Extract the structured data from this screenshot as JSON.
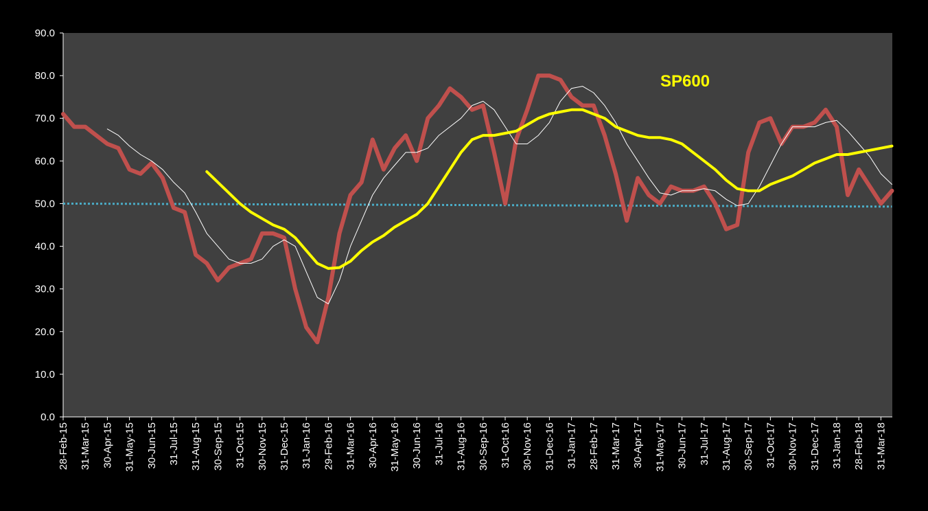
{
  "chart_data": {
    "type": "line",
    "annotations": [
      {
        "text": "SP600",
        "color": "#ffff00"
      }
    ],
    "categories": [
      "28-Feb-15",
      null,
      "31-Mar-15",
      null,
      "30-Apr-15",
      null,
      "31-May-15",
      null,
      "30-Jun-15",
      null,
      "31-Jul-15",
      null,
      "31-Aug-15",
      null,
      "30-Sep-15",
      null,
      "31-Oct-15",
      null,
      "30-Nov-15",
      null,
      "31-Dec-15",
      null,
      "31-Jan-16",
      null,
      "29-Feb-16",
      null,
      "31-Mar-16",
      null,
      "30-Apr-16",
      null,
      "31-May-16",
      null,
      "30-Jun-16",
      null,
      "31-Jul-16",
      null,
      "31-Aug-16",
      null,
      "30-Sep-16",
      null,
      "31-Oct-16",
      null,
      "30-Nov-16",
      null,
      "31-Dec-16",
      null,
      "31-Jan-17",
      null,
      "28-Feb-17",
      null,
      "31-Mar-17",
      null,
      "30-Apr-17",
      null,
      "31-May-17",
      null,
      "30-Jun-17",
      null,
      "31-Jul-17",
      null,
      "31-Aug-17",
      null,
      "30-Sep-17",
      null,
      "31-Oct-17",
      null,
      "30-Nov-17",
      null,
      "31-Dec-17",
      null,
      "31-Jan-18",
      null,
      "28-Feb-18",
      null,
      "31-Mar-18",
      null
    ],
    "series": [
      {
        "color": "#c0504d",
        "width": 6,
        "values": [
          71,
          68,
          68,
          66,
          64,
          63,
          58,
          57,
          59.5,
          56,
          49,
          48,
          38,
          36,
          32,
          35,
          36,
          37,
          43,
          43,
          42,
          30,
          21,
          17.5,
          28,
          43,
          52,
          55,
          65,
          58,
          63,
          66,
          60,
          70,
          73,
          77,
          75,
          72,
          73,
          62,
          50,
          65,
          72,
          80,
          80,
          79,
          75,
          73,
          73,
          66,
          57,
          46,
          56,
          52,
          50,
          54,
          53,
          53,
          54,
          50,
          44,
          45,
          62,
          69,
          70,
          64,
          68,
          68,
          69,
          72,
          68,
          52,
          58,
          54,
          50,
          53
        ]
      },
      {
        "color": "#ffffff",
        "width": 1,
        "values": [
          null,
          null,
          null,
          null,
          67.5,
          66,
          63.5,
          61.5,
          60,
          58,
          55,
          52.5,
          48,
          43,
          40,
          37,
          36,
          36,
          37,
          40,
          41.5,
          40,
          34,
          28,
          26.5,
          32,
          40,
          46,
          52,
          56,
          59,
          62,
          62,
          63,
          66,
          68,
          70,
          73,
          74,
          72,
          68,
          64,
          64,
          66,
          69,
          74,
          77,
          77.5,
          76,
          73,
          69,
          64,
          60,
          56,
          52.5,
          52,
          53,
          53,
          53.5,
          53,
          51,
          49.5,
          50,
          54,
          59,
          64,
          68,
          68,
          68,
          69,
          69.5,
          67,
          64,
          61,
          57,
          54.5
        ]
      },
      {
        "color": "#ffff00",
        "width": 4,
        "values": [
          null,
          null,
          null,
          null,
          null,
          null,
          null,
          null,
          null,
          null,
          null,
          null,
          null,
          57.5,
          55,
          52.5,
          50,
          48,
          46.5,
          45,
          44,
          42,
          39,
          36,
          34.8,
          35,
          36.5,
          39,
          41,
          42.5,
          44.5,
          46,
          47.5,
          50,
          54,
          58,
          62,
          65,
          66,
          66,
          66.5,
          67,
          68.5,
          70,
          71,
          71.5,
          72,
          72,
          71,
          70,
          68,
          67,
          66,
          65.5,
          65.5,
          65,
          64,
          62,
          60,
          58,
          55.5,
          53.5,
          53,
          53,
          54.5,
          55.5,
          56.5,
          58,
          59.5,
          60.5,
          61.5,
          61.5,
          62,
          62.5,
          63,
          63.5
        ]
      }
    ],
    "reference_line": {
      "start": 50,
      "end": 49.3,
      "color": "#4bacc6"
    },
    "ylim": [
      0,
      90
    ],
    "yticks": [
      {
        "value": 0,
        "label": "0.0"
      },
      {
        "value": 10,
        "label": "10.0"
      },
      {
        "value": 20,
        "label": "20.0"
      },
      {
        "value": 30,
        "label": "30.0"
      },
      {
        "value": 40,
        "label": "40.0"
      },
      {
        "value": 50,
        "label": "50.0"
      },
      {
        "value": 60,
        "label": "60.0"
      },
      {
        "value": 70,
        "label": "70.0"
      },
      {
        "value": 80,
        "label": "80.0"
      },
      {
        "value": 90,
        "label": "90.0"
      }
    ],
    "plot_background": "#404040"
  }
}
